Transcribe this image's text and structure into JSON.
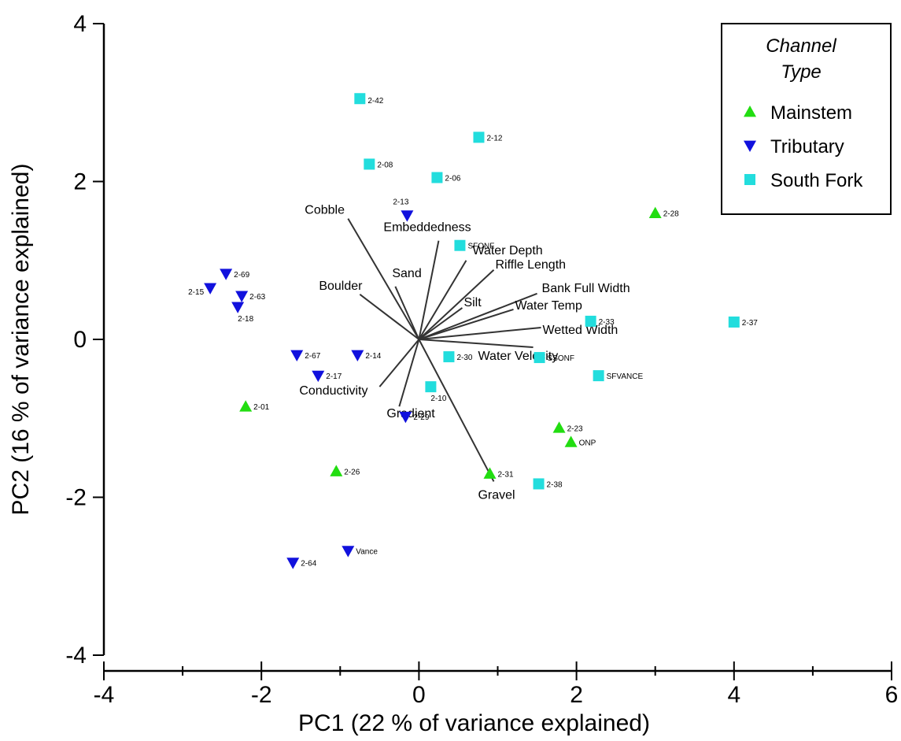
{
  "chart_data": {
    "type": "scatter",
    "xlabel": "PC1 (22 % of variance explained)",
    "ylabel": "PC2 (16 % of variance explained)",
    "xlim": [
      -4,
      6
    ],
    "ylim": [
      -4,
      4
    ],
    "xticks": [
      -4,
      -2,
      0,
      2,
      4,
      6
    ],
    "yticks": [
      -4,
      -2,
      0,
      2,
      4
    ],
    "grid": false,
    "legend": {
      "title": "Channel Type",
      "placement": "top-right"
    },
    "series": [
      {
        "name": "Mainstem",
        "marker": "triangle-up",
        "color": "#22dd11",
        "points": [
          {
            "label": "2-28",
            "x": 3.0,
            "y": 1.6
          },
          {
            "label": "2-01",
            "x": -2.2,
            "y": -0.85
          },
          {
            "label": "2-23",
            "x": 1.78,
            "y": -1.12
          },
          {
            "label": "ONP",
            "x": 1.93,
            "y": -1.3
          },
          {
            "label": "2-26",
            "x": -1.05,
            "y": -1.67
          },
          {
            "label": "2-31",
            "x": 0.9,
            "y": -1.7
          }
        ]
      },
      {
        "name": "Tributary",
        "marker": "triangle-down",
        "color": "#1111dd",
        "points": [
          {
            "label": "2-13",
            "x": -0.15,
            "y": 1.57
          },
          {
            "label": "2-69",
            "x": -2.45,
            "y": 0.83
          },
          {
            "label": "2-15",
            "x": -2.65,
            "y": 0.65
          },
          {
            "label": "2-63",
            "x": -2.25,
            "y": 0.55
          },
          {
            "label": "2-18",
            "x": -2.3,
            "y": 0.41
          },
          {
            "label": "2-67",
            "x": -1.55,
            "y": -0.2
          },
          {
            "label": "2-14",
            "x": -0.78,
            "y": -0.2
          },
          {
            "label": "2-17",
            "x": -1.28,
            "y": -0.46
          },
          {
            "label": "2-29",
            "x": -0.17,
            "y": -0.98
          },
          {
            "label": "Vance",
            "x": -0.9,
            "y": -2.68
          },
          {
            "label": "2-64",
            "x": -1.6,
            "y": -2.83
          }
        ]
      },
      {
        "name": "South Fork",
        "marker": "square",
        "color": "#22dddd",
        "points": [
          {
            "label": "2-42",
            "x": -0.75,
            "y": 3.05
          },
          {
            "label": "2-12",
            "x": 0.76,
            "y": 2.56
          },
          {
            "label": "2-08",
            "x": -0.63,
            "y": 2.22
          },
          {
            "label": "2-06",
            "x": 0.23,
            "y": 2.05
          },
          {
            "label": "SFONF",
            "x": 0.52,
            "y": 1.19
          },
          {
            "label": "2-33",
            "x": 2.18,
            "y": 0.23
          },
          {
            "label": "2-37",
            "x": 4.0,
            "y": 0.22
          },
          {
            "label": "2-30",
            "x": 0.38,
            "y": -0.22
          },
          {
            "label": "SSONF",
            "x": 1.53,
            "y": -0.23
          },
          {
            "label": "SFVANCE",
            "x": 2.28,
            "y": -0.46
          },
          {
            "label": "2-10",
            "x": 0.15,
            "y": -0.6
          },
          {
            "label": "2-38",
            "x": 1.52,
            "y": -1.83
          }
        ]
      }
    ],
    "vectors": [
      {
        "label": "Cobble",
        "x": -0.9,
        "y": 1.53
      },
      {
        "label": "Embeddedness",
        "x": 0.25,
        "y": 1.25
      },
      {
        "label": "Water Depth",
        "x": 0.6,
        "y": 1.0
      },
      {
        "label": "Riffle Length",
        "x": 0.95,
        "y": 0.88
      },
      {
        "label": "Sand",
        "x": -0.3,
        "y": 0.67
      },
      {
        "label": "Boulder",
        "x": -0.75,
        "y": 0.57
      },
      {
        "label": "Bank Full Width",
        "x": 1.5,
        "y": 0.58
      },
      {
        "label": "Silt",
        "x": 0.55,
        "y": 0.4
      },
      {
        "label": "Water Temp",
        "x": 1.2,
        "y": 0.38
      },
      {
        "label": "Wetted Width",
        "x": 1.55,
        "y": 0.15
      },
      {
        "label": "Water Velocity",
        "x": 1.45,
        "y": -0.1
      },
      {
        "label": "Conductivity",
        "x": -0.5,
        "y": -0.6
      },
      {
        "label": "Gradient",
        "x": -0.25,
        "y": -0.85
      },
      {
        "label": "Gravel",
        "x": 0.95,
        "y": -1.8
      }
    ]
  }
}
